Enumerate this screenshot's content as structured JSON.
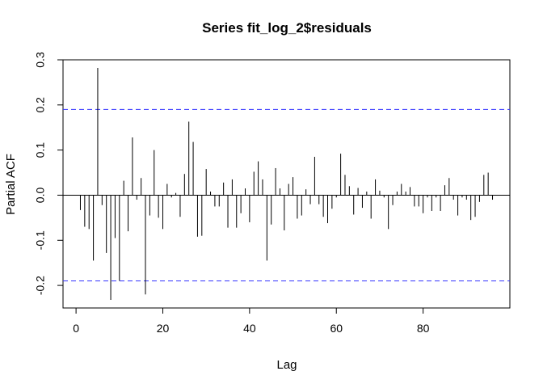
{
  "chart_data": {
    "type": "bar",
    "title": "Series  fit_log_2$residuals",
    "xlabel": "Lag",
    "ylabel": "Partial ACF",
    "xlim": [
      -3,
      100
    ],
    "ylim": [
      -0.25,
      0.3
    ],
    "x_ticks": [
      "0",
      "20",
      "40",
      "60",
      "80"
    ],
    "y_ticks": [
      "-0.2",
      "-0.1",
      "0.0",
      "0.1",
      "0.2",
      "0.3"
    ],
    "confidence_band": 0.19,
    "confidence_color": "#3333ff",
    "bar_color": "#000000",
    "grid": false,
    "x": [
      1,
      2,
      3,
      4,
      5,
      6,
      7,
      8,
      9,
      10,
      11,
      12,
      13,
      14,
      15,
      16,
      17,
      18,
      19,
      20,
      21,
      22,
      23,
      24,
      25,
      26,
      27,
      28,
      29,
      30,
      31,
      32,
      33,
      34,
      35,
      36,
      37,
      38,
      39,
      40,
      41,
      42,
      43,
      44,
      45,
      46,
      47,
      48,
      49,
      50,
      51,
      52,
      53,
      54,
      55,
      56,
      57,
      58,
      59,
      60,
      61,
      62,
      63,
      64,
      65,
      66,
      67,
      68,
      69,
      70,
      71,
      72,
      73,
      74,
      75,
      76,
      77,
      78,
      79,
      80,
      81,
      82,
      83,
      84,
      85,
      86,
      87,
      88,
      89,
      90,
      91,
      92,
      93,
      94,
      95,
      96
    ],
    "values": [
      -0.033,
      -0.07,
      -0.075,
      -0.145,
      0.282,
      -0.022,
      -0.128,
      -0.232,
      -0.095,
      -0.19,
      0.032,
      -0.08,
      0.128,
      -0.01,
      0.038,
      -0.22,
      -0.045,
      0.1,
      -0.05,
      -0.075,
      0.025,
      -0.005,
      0.005,
      -0.048,
      0.047,
      0.163,
      0.118,
      -0.092,
      -0.09,
      0.058,
      0.008,
      -0.025,
      -0.025,
      0.028,
      -0.072,
      0.035,
      -0.072,
      -0.04,
      0.015,
      -0.06,
      0.052,
      0.075,
      0.035,
      -0.145,
      -0.065,
      0.06,
      0.015,
      -0.078,
      0.025,
      0.04,
      -0.052,
      -0.045,
      0.013,
      -0.02,
      0.085,
      -0.02,
      -0.048,
      -0.062,
      -0.03,
      -0.005,
      0.092,
      0.045,
      0.02,
      -0.043,
      0.016,
      -0.028,
      0.008,
      -0.052,
      0.035,
      0.01,
      -0.005,
      -0.075,
      -0.022,
      0.008,
      0.025,
      0.008,
      0.018,
      -0.025,
      -0.025,
      -0.04,
      -0.005,
      -0.035,
      -0.005,
      -0.035,
      0.022,
      0.038,
      -0.01,
      -0.045,
      -0.005,
      -0.01,
      -0.055,
      -0.048,
      -0.015,
      0.045,
      0.05,
      -0.01
    ]
  }
}
